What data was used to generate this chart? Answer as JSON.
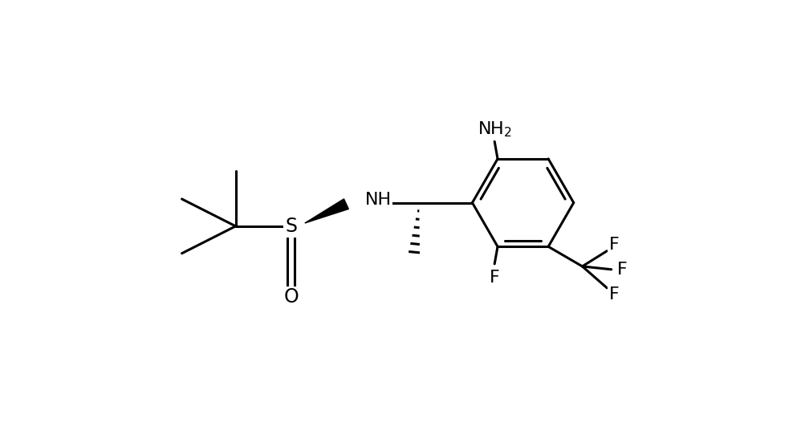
{
  "background_color": "#ffffff",
  "line_color": "#000000",
  "line_width": 2.2,
  "font_size": 15,
  "figsize": [
    10.04,
    5.52
  ],
  "dpi": 100,
  "xlim": [
    0,
    10.04
  ],
  "ylim": [
    0,
    5.52
  ]
}
